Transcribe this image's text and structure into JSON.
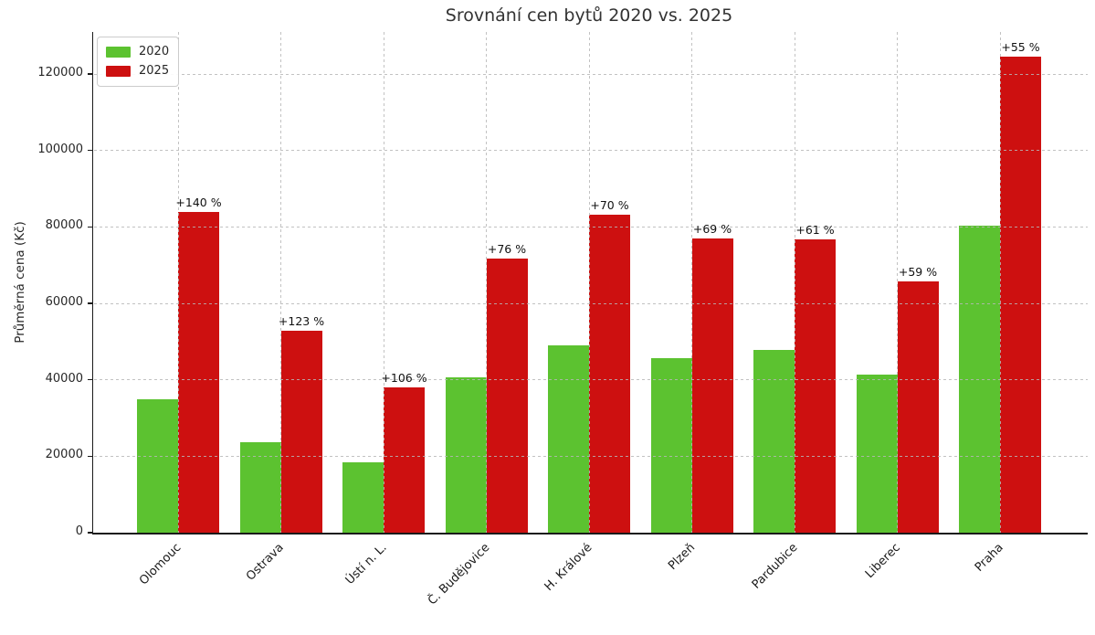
{
  "chart_data": {
    "type": "bar",
    "title": "Srovnání cen bytů 2020 vs. 2025",
    "ylabel": "Průměrná cena (Kč)",
    "xlabel": "",
    "categories": [
      "Olomouc",
      "Ostrava",
      "Ústí n. L.",
      "Č. Budějovice",
      "H. Králové",
      "Plzeň",
      "Pardubice",
      "Liberec",
      "Praha"
    ],
    "series": [
      {
        "name": "2020",
        "color": "#5cc230",
        "values": [
          35000,
          23700,
          18400,
          40700,
          49000,
          45600,
          47700,
          41400,
          80300
        ]
      },
      {
        "name": "2025",
        "color": "#cd1010",
        "values": [
          84000,
          52900,
          37900,
          71600,
          83300,
          77000,
          76800,
          65800,
          124500
        ]
      }
    ],
    "bar_labels": [
      "+140 %",
      "+123 %",
      "+106 %",
      "+76 %",
      "+70 %",
      "+69 %",
      "+61 %",
      "+59 %",
      "+55 %"
    ],
    "ylim": [
      0,
      131000
    ],
    "yticks": [
      0,
      20000,
      40000,
      60000,
      80000,
      100000,
      120000
    ],
    "grid": "dashed light-gray, horizontal and vertical, drawn over bars",
    "legend_position": "upper left",
    "x_tick_rotation": 45
  }
}
